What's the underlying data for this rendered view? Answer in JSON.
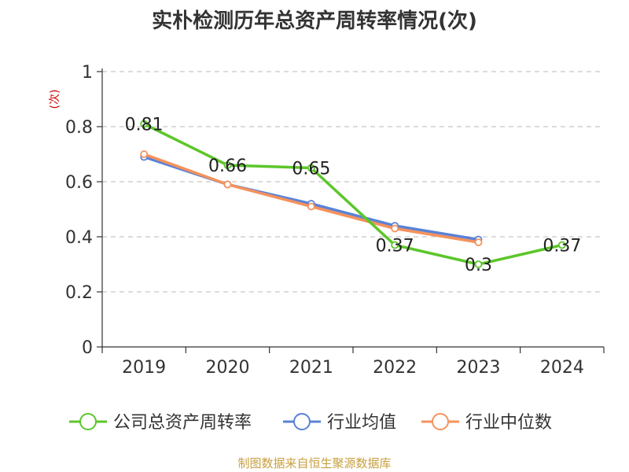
{
  "chart_data": {
    "type": "line",
    "title": "实朴检测历年总资产周转率情况(次)",
    "ylabel": "(次)",
    "categories": [
      "2019",
      "2020",
      "2021",
      "2022",
      "2023",
      "2024"
    ],
    "ylim": [
      0,
      1
    ],
    "yticks": [
      0,
      0.2,
      0.4,
      0.6,
      0.8,
      1
    ],
    "ytick_labels": [
      "0",
      "0.2",
      "0.4",
      "0.6",
      "0.8",
      "1"
    ],
    "grid": true,
    "legend_position": "bottom",
    "series": [
      {
        "name": "公司总资产周转率",
        "color": "#5cc62a",
        "values": [
          0.81,
          0.66,
          0.65,
          0.37,
          0.3,
          0.37
        ],
        "labels": [
          "0.81",
          "0.66",
          "0.65",
          "0.37",
          "0.3",
          "0.37"
        ],
        "show_labels": true
      },
      {
        "name": "行业均值",
        "color": "#5a82d6",
        "values": [
          0.69,
          0.59,
          0.52,
          0.44,
          0.39,
          null
        ],
        "show_labels": false
      },
      {
        "name": "行业中位数",
        "color": "#f5925c",
        "values": [
          0.7,
          0.59,
          0.51,
          0.43,
          0.38,
          null
        ],
        "show_labels": false
      }
    ],
    "unit_color": "#cc0000"
  },
  "source": "制图数据来自恒生聚源数据库"
}
